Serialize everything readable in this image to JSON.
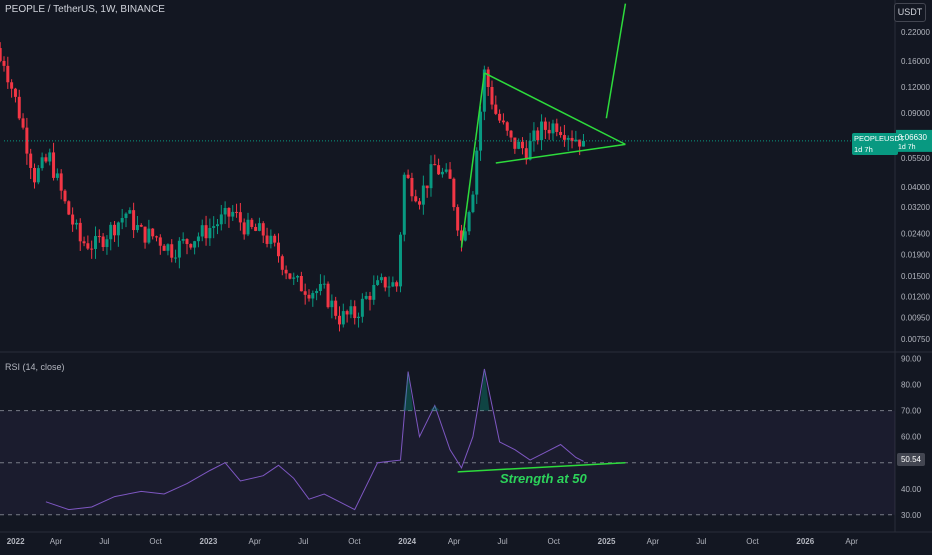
{
  "header": {
    "symbol_title": "PEOPLE / TetherUS, 1W, BINANCE",
    "currency": "USDT"
  },
  "rsi_panel": {
    "title": "RSI (14, close)",
    "current_value": "50.54",
    "annotation": "Strength at 50"
  },
  "last_price": {
    "symbol": "PEOPLEUSDT",
    "countdown": "1d 7h",
    "value": "0.06630",
    "lower_value": "0.05500"
  },
  "chart_data": [
    {
      "type": "candlestick",
      "title": "PEOPLE / TetherUS, 1W, BINANCE",
      "scale": "log",
      "price_ticks": [
        "0.22000",
        "0.16000",
        "0.12000",
        "0.09000",
        "0.07000",
        "0.05500",
        "0.04000",
        "0.03200",
        "0.02400",
        "0.01900",
        "0.01500",
        "0.01200",
        "0.00950",
        "0.00750"
      ],
      "price_tick_values": [
        0.22,
        0.16,
        0.12,
        0.09,
        0.07,
        0.055,
        0.04,
        0.032,
        0.024,
        0.019,
        0.015,
        0.012,
        0.0095,
        0.0075
      ],
      "ylim": [
        0.0068,
        0.245
      ],
      "time_ticks": [
        "2022",
        "Apr",
        "Jul",
        "Oct",
        "2023",
        "Apr",
        "Jul",
        "Oct",
        "2024",
        "Apr",
        "Jul",
        "Oct",
        "2025",
        "Apr",
        "Jul",
        "Oct",
        "2026",
        "Apr"
      ],
      "last_price": 0.0663,
      "keypoints_close": [
        [
          "2021-12-27",
          0.16
        ],
        [
          "2022-01-24",
          0.09
        ],
        [
          "2022-02-21",
          0.045
        ],
        [
          "2022-03-21",
          0.055
        ],
        [
          "2022-04-18",
          0.033
        ],
        [
          "2022-05-16",
          0.022
        ],
        [
          "2022-06-13",
          0.021
        ],
        [
          "2022-07-11",
          0.025
        ],
        [
          "2022-08-08",
          0.03
        ],
        [
          "2022-09-05",
          0.024
        ],
        [
          "2022-10-03",
          0.023
        ],
        [
          "2022-10-31",
          0.02
        ],
        [
          "2022-11-28",
          0.022
        ],
        [
          "2022-12-26",
          0.024
        ],
        [
          "2023-01-23",
          0.027
        ],
        [
          "2023-02-20",
          0.03
        ],
        [
          "2023-03-20",
          0.025
        ],
        [
          "2023-04-17",
          0.024
        ],
        [
          "2023-05-15",
          0.019
        ],
        [
          "2023-06-12",
          0.014
        ],
        [
          "2023-07-10",
          0.013
        ],
        [
          "2023-08-07",
          0.0125
        ],
        [
          "2023-09-04",
          0.0095
        ],
        [
          "2023-10-02",
          0.0098
        ],
        [
          "2023-10-30",
          0.0125
        ],
        [
          "2023-11-27",
          0.014
        ],
        [
          "2023-12-18",
          0.0135
        ],
        [
          "2024-01-01",
          0.045
        ],
        [
          "2024-01-29",
          0.036
        ],
        [
          "2024-02-26",
          0.05
        ],
        [
          "2024-03-25",
          0.042
        ],
        [
          "2024-04-15",
          0.022
        ],
        [
          "2024-05-06",
          0.04
        ],
        [
          "2024-05-27",
          0.14
        ],
        [
          "2024-06-17",
          0.09
        ],
        [
          "2024-07-15",
          0.065
        ],
        [
          "2024-08-12",
          0.06
        ],
        [
          "2024-09-09",
          0.075
        ],
        [
          "2024-10-07",
          0.08
        ],
        [
          "2024-11-04",
          0.07
        ],
        [
          "2024-11-25",
          0.0663
        ]
      ],
      "trendlines": {
        "rising_support": [
          [
            "2024-04-15",
            0.0205
          ],
          [
            "2024-05-27",
            0.14
          ]
        ],
        "triangle_upper": [
          [
            "2024-05-27",
            0.14
          ],
          [
            "2025-02-10",
            0.0638
          ]
        ],
        "triangle_lower": [
          [
            "2024-06-17",
            0.052
          ],
          [
            "2025-02-10",
            0.0638
          ]
        ],
        "breakout_projection": [
          [
            "2025-01-06",
            0.085
          ],
          [
            "2025-02-10",
            0.3
          ]
        ]
      }
    },
    {
      "type": "line",
      "title": "RSI (14, close)",
      "y_ticks": [
        "90.00",
        "80.00",
        "70.00",
        "60.00",
        "50.00",
        "40.00",
        "30.00"
      ],
      "y_tick_values": [
        90,
        80,
        70,
        60,
        50,
        40,
        30
      ],
      "ylim": [
        28,
        91
      ],
      "bands": [
        30,
        50,
        70
      ],
      "current": 50.54,
      "keypoints": [
        [
          "2022-03-14",
          35
        ],
        [
          "2022-04-25",
          32
        ],
        [
          "2022-06-06",
          33
        ],
        [
          "2022-07-18",
          37
        ],
        [
          "2022-09-05",
          39
        ],
        [
          "2022-10-17",
          38
        ],
        [
          "2022-11-28",
          42
        ],
        [
          "2023-01-09",
          47
        ],
        [
          "2023-02-06",
          50
        ],
        [
          "2023-03-06",
          43
        ],
        [
          "2023-04-17",
          45
        ],
        [
          "2023-05-15",
          49
        ],
        [
          "2023-06-12",
          44
        ],
        [
          "2023-07-10",
          36
        ],
        [
          "2023-08-07",
          38
        ],
        [
          "2023-09-04",
          35
        ],
        [
          "2023-10-02",
          32
        ],
        [
          "2023-11-13",
          50
        ],
        [
          "2023-12-25",
          51
        ],
        [
          "2024-01-08",
          85
        ],
        [
          "2024-01-29",
          60
        ],
        [
          "2024-02-26",
          72
        ],
        [
          "2024-03-25",
          55
        ],
        [
          "2024-04-15",
          48
        ],
        [
          "2024-05-06",
          60
        ],
        [
          "2024-05-27",
          86
        ],
        [
          "2024-06-24",
          58
        ],
        [
          "2024-07-22",
          55
        ],
        [
          "2024-08-19",
          51
        ],
        [
          "2024-09-16",
          54
        ],
        [
          "2024-10-14",
          57
        ],
        [
          "2024-11-11",
          52
        ],
        [
          "2024-11-25",
          50.54
        ]
      ],
      "support_line": [
        [
          "2024-04-08",
          46.5
        ],
        [
          "2025-02-10",
          50
        ]
      ],
      "annotation": "Strength at 50"
    }
  ]
}
